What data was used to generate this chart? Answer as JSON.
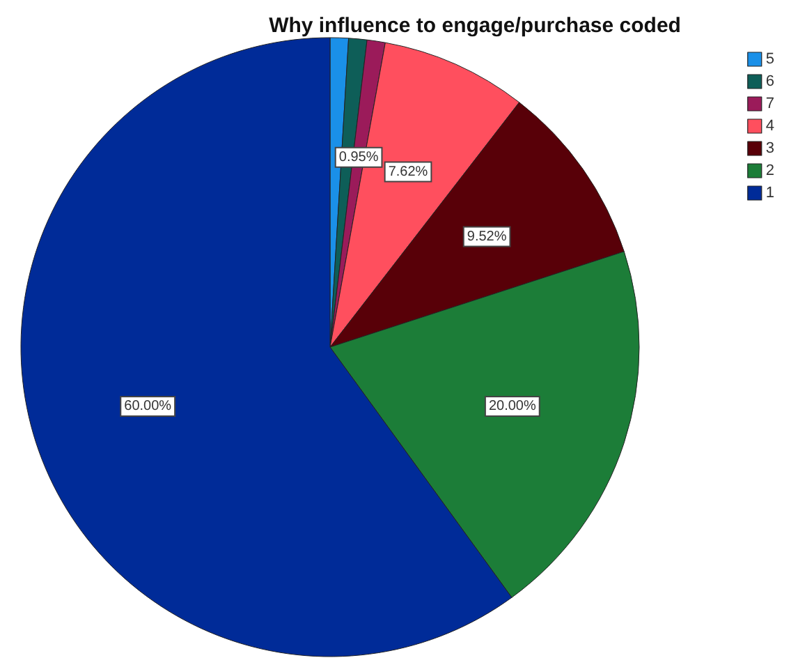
{
  "chart_data": {
    "type": "pie",
    "title": "Why influence to engage/purchase coded",
    "categories": [
      "5",
      "6",
      "7",
      "4",
      "3",
      "2",
      "1"
    ],
    "values": [
      0.955,
      0.955,
      0.95,
      7.62,
      9.52,
      20,
      60
    ],
    "colors": [
      "#1a90e8",
      "#0e5e58",
      "#9b1b5a",
      "#ff4f5e",
      "#580008",
      "#1c7d38",
      "#002b98"
    ],
    "value_labels": [
      null,
      null,
      "0.95%",
      "7.62%",
      "9.52%",
      "20.00%",
      "60.00%"
    ],
    "legend": "top right"
  }
}
